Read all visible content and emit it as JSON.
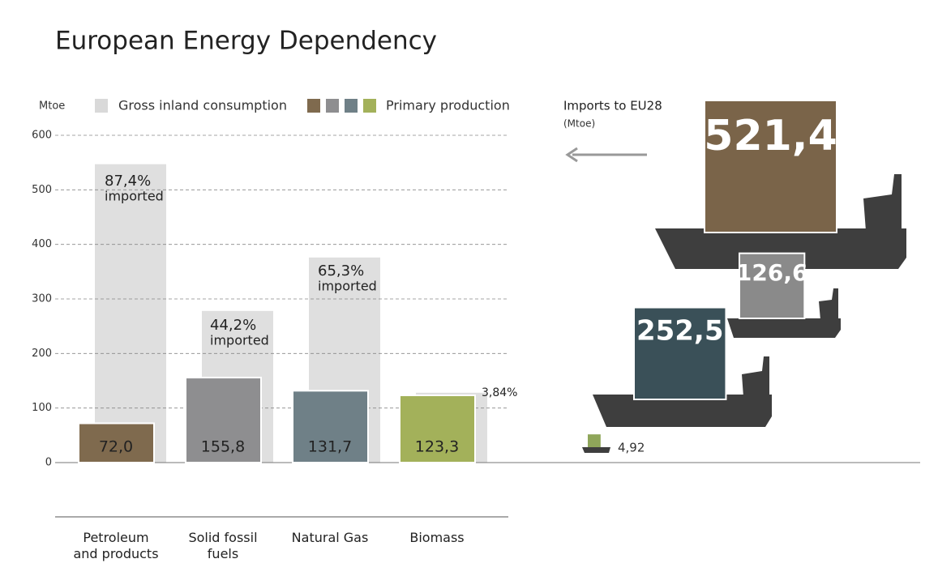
{
  "chart_data": {
    "type": "bar",
    "title": "European Energy Dependency",
    "y_label": "Mtoe",
    "ylim": [
      0,
      600
    ],
    "yticks": [
      0,
      100,
      200,
      300,
      400,
      500,
      600
    ],
    "grid": true,
    "categories": [
      "Petroleum and products",
      "Solid fossil fuels",
      "Natural Gas",
      "Biomass"
    ],
    "series": [
      {
        "name": "Gross inland consumption",
        "color": "#d9d9d9",
        "values": [
          547,
          278,
          376,
          128
        ]
      },
      {
        "name": "Primary production",
        "colors": [
          "#7f6a4e",
          "#8e8e90",
          "#6f8087",
          "#a3b15a"
        ],
        "values": [
          72.0,
          155.8,
          131.7,
          123.3
        ],
        "value_labels": [
          "72,0",
          "155,8",
          "131,7",
          "123,3"
        ]
      }
    ],
    "import_share_labels": [
      "87,4%",
      "44,2%",
      "65,3%",
      "3,84%"
    ],
    "import_note": "imported",
    "imports": {
      "title": "Imports to EU28",
      "unit": "(Mtoe)",
      "values": [
        521.4,
        126.6,
        252.5,
        4.92
      ],
      "value_labels": [
        "521,4",
        "126,6",
        "252,5",
        "4,92"
      ],
      "colors": [
        "#7a6449",
        "#8a8a8a",
        "#3a5058",
        "#8fa65a"
      ]
    }
  }
}
